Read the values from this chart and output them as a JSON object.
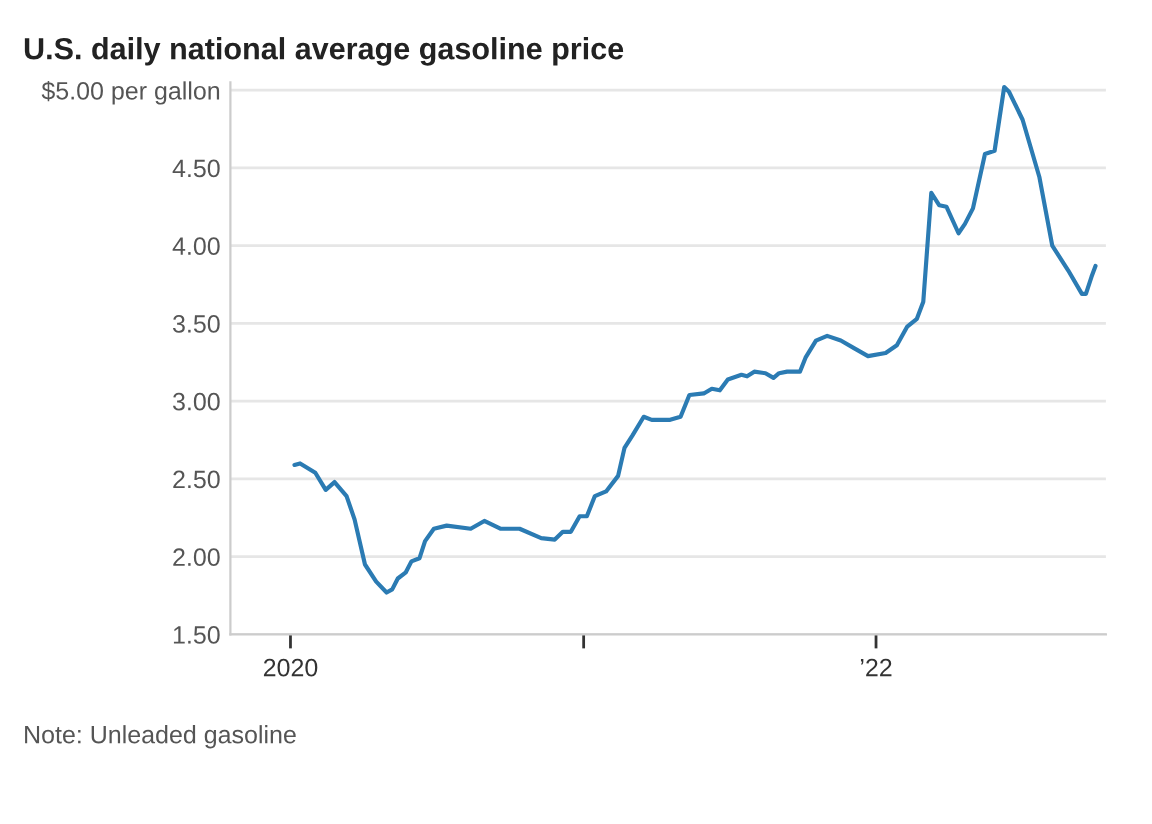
{
  "chart_data": {
    "type": "line",
    "title": "U.S. daily national average gasoline price",
    "x": [
      "2020-01-06",
      "2020-01-13",
      "2020-02-01",
      "2020-02-14",
      "2020-02-25",
      "2020-03-11",
      "2020-03-21",
      "2020-04-03",
      "2020-04-17",
      "2020-04-30",
      "2020-05-07",
      "2020-05-14",
      "2020-05-24",
      "2020-05-31",
      "2020-06-10",
      "2020-06-17",
      "2020-06-28",
      "2020-07-14",
      "2020-08-13",
      "2020-08-30",
      "2020-09-19",
      "2020-10-13",
      "2020-11-09",
      "2020-11-26",
      "2020-12-06",
      "2020-12-16",
      "2020-12-27",
      "2021-01-05",
      "2021-01-15",
      "2021-01-29",
      "2021-02-13",
      "2021-02-21",
      "2021-03-03",
      "2021-03-17",
      "2021-03-27",
      "2021-04-19",
      "2021-05-02",
      "2021-05-13",
      "2021-05-31",
      "2021-06-10",
      "2021-06-20",
      "2021-06-30",
      "2021-07-17",
      "2021-07-24",
      "2021-08-02",
      "2021-08-16",
      "2021-08-26",
      "2021-09-02",
      "2021-09-12",
      "2021-09-28",
      "2021-10-05",
      "2021-10-18",
      "2021-11-01",
      "2021-11-18",
      "2021-12-05",
      "2021-12-22",
      "2022-01-13",
      "2022-01-27",
      "2022-02-09",
      "2022-02-21",
      "2022-03-01",
      "2022-03-11",
      "2022-03-21",
      "2022-03-30",
      "2022-04-14",
      "2022-04-22",
      "2022-05-02",
      "2022-05-17",
      "2022-05-29",
      "2022-06-10",
      "2022-06-16",
      "2022-07-03",
      "2022-07-24",
      "2022-08-09",
      "2022-08-29",
      "2022-09-15",
      "2022-09-20",
      "2022-09-27",
      "2022-10-02"
    ],
    "series": [
      {
        "color": "#2b7bb3",
        "values": [
          2.59,
          2.6,
          2.54,
          2.43,
          2.48,
          2.39,
          2.24,
          1.95,
          1.84,
          1.77,
          1.79,
          1.86,
          1.9,
          1.97,
          1.99,
          2.1,
          2.18,
          2.2,
          2.18,
          2.23,
          2.18,
          2.18,
          2.12,
          2.11,
          2.16,
          2.16,
          2.26,
          2.26,
          2.39,
          2.42,
          2.52,
          2.7,
          2.78,
          2.9,
          2.88,
          2.88,
          2.9,
          3.04,
          3.05,
          3.08,
          3.07,
          3.14,
          3.17,
          3.16,
          3.19,
          3.18,
          3.15,
          3.18,
          3.19,
          3.19,
          3.28,
          3.39,
          3.42,
          3.39,
          3.34,
          3.29,
          3.31,
          3.36,
          3.48,
          3.53,
          3.64,
          4.34,
          4.26,
          4.25,
          4.08,
          4.14,
          4.24,
          4.59,
          4.61,
          5.02,
          4.99,
          4.81,
          4.44,
          4.0,
          3.84,
          3.69,
          3.69,
          3.8,
          3.87
        ]
      }
    ],
    "xlim": [
      "2019-10-18",
      "2022-10-15"
    ],
    "xticks": [
      {
        "value": "2020-01-01",
        "label": "2020"
      },
      {
        "value": "2021-01-01",
        "label": null
      },
      {
        "value": "2022-01-01",
        "label": "’22"
      }
    ],
    "ylim": [
      1.5,
      5.05
    ],
    "yticks": [
      {
        "value": 1.5,
        "label": "1.50"
      },
      {
        "value": 2,
        "label": "2.00"
      },
      {
        "value": 2.5,
        "label": "2.50"
      },
      {
        "value": 3,
        "label": "3.00"
      },
      {
        "value": 3.5,
        "label": "3.50"
      },
      {
        "value": 4,
        "label": "4.00"
      },
      {
        "value": 4.5,
        "label": "4.50"
      },
      {
        "value": 5,
        "label": "$5.00 per gallon"
      }
    ],
    "grid": "y",
    "line_style": "solid",
    "marker": "none",
    "annotations": [
      "Note: Unleaded gasoline"
    ]
  }
}
